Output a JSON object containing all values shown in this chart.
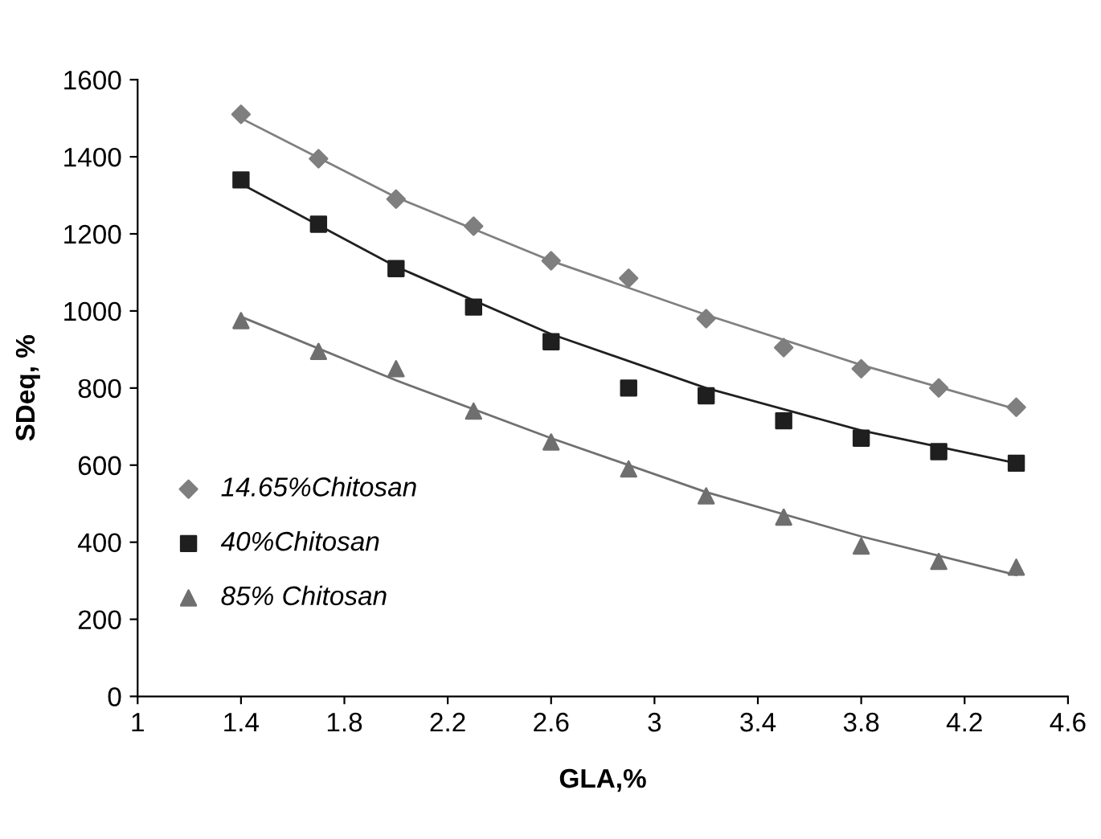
{
  "chart_data": {
    "type": "scatter",
    "xlabel": "GLA,%",
    "ylabel": "SDeq, %",
    "xlim": [
      1,
      4.6
    ],
    "xticks": [
      1,
      1.4,
      1.8,
      2.2,
      2.6,
      3,
      3.4,
      3.8,
      4.2,
      4.6
    ],
    "ylim": [
      0,
      1600
    ],
    "yticks": [
      0,
      200,
      400,
      600,
      800,
      1000,
      1200,
      1400,
      1600
    ],
    "grid": false,
    "legend": "bottom left",
    "x": [
      1.4,
      1.7,
      2.0,
      2.3,
      2.6,
      2.9,
      3.2,
      3.5,
      3.8,
      4.1,
      4.4
    ],
    "series": [
      {
        "name": "14.65%Chitosan",
        "marker": "diamond",
        "color": "#7f7f7f",
        "values": [
          1510,
          1395,
          1290,
          1220,
          1130,
          1085,
          980,
          905,
          850,
          800,
          750
        ]
      },
      {
        "name": "40%Chitosan",
        "marker": "square",
        "color": "#1f1f1f",
        "values": [
          1340,
          1225,
          1110,
          1010,
          920,
          800,
          780,
          715,
          670,
          635,
          605
        ]
      },
      {
        "name": "85% Chitosan",
        "marker": "triangle",
        "color": "#6f6f6f",
        "values": [
          975,
          895,
          850,
          740,
          660,
          590,
          520,
          465,
          390,
          350,
          335
        ]
      },
      {
        "type": "line",
        "marker": "none",
        "color": "#808080",
        "x": [
          1.4,
          2.0,
          2.6,
          3.2,
          3.8,
          4.4
        ],
        "values": [
          1500,
          1295,
          1130,
          990,
          860,
          745
        ]
      },
      {
        "type": "line",
        "marker": "none",
        "color": "#202020",
        "x": [
          1.4,
          2.0,
          2.6,
          3.2,
          3.8,
          4.4
        ],
        "values": [
          1330,
          1115,
          940,
          800,
          690,
          605
        ]
      },
      {
        "type": "line",
        "marker": "none",
        "color": "#707070",
        "x": [
          1.4,
          2.0,
          2.6,
          3.2,
          3.8,
          4.4
        ],
        "values": [
          985,
          820,
          670,
          530,
          415,
          315
        ]
      }
    ]
  }
}
